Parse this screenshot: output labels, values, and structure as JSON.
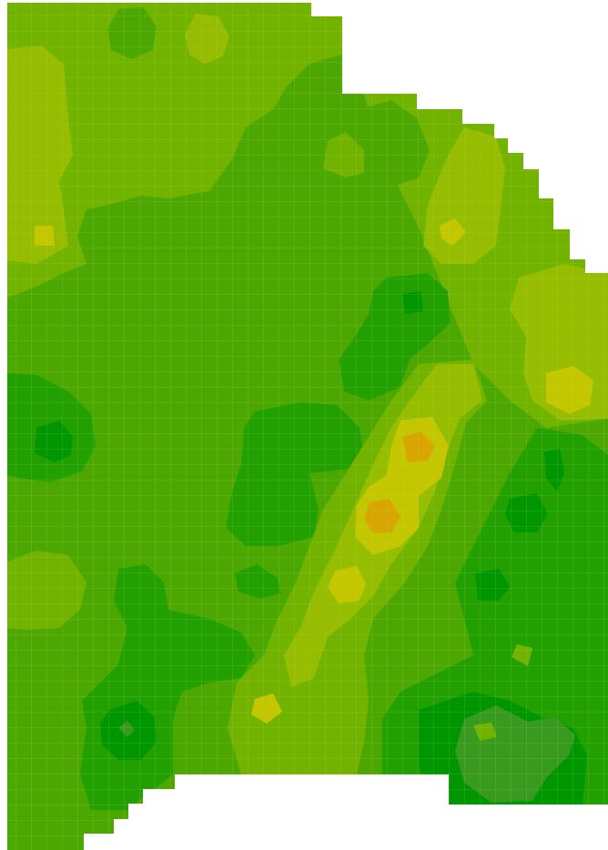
{
  "map": {
    "type": "contour-heatmap",
    "legend": "none",
    "labels": [],
    "grid": true,
    "colors": {
      "background": "#ffffff",
      "base": "#4ca800",
      "level_dark_2": "#009600",
      "level_dark_1": "#22a000",
      "level_light_1": "#72b300",
      "level_light_2": "#96bd00",
      "level_light_3": "#c4c700",
      "level_peak": "#d9a500",
      "level_olive": "#389a1e",
      "grid_line": "#b8dd88"
    }
  }
}
